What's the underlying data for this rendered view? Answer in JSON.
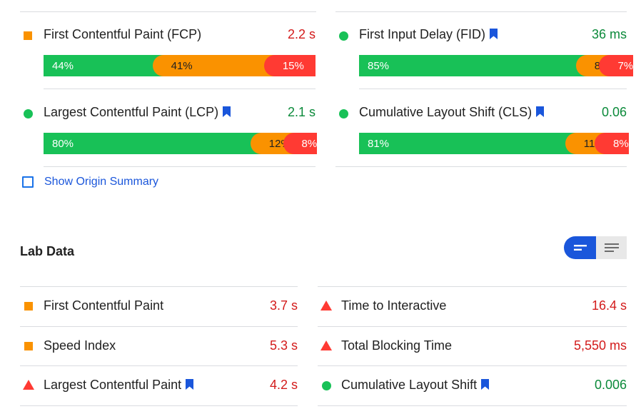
{
  "colors": {
    "good": "#18c157",
    "average": "#fa9200",
    "poor": "#ff3a33",
    "good_text": "#0b8a3a",
    "poor_text": "#d31b1b",
    "accent": "#1a56db",
    "divider": "#dadce0"
  },
  "field_data": {
    "metrics": [
      {
        "name": "First Contentful Paint (FCP)",
        "value": "2.2 s",
        "indicator": "orange-square",
        "value_status": "poor",
        "bookmark": false,
        "distribution": {
          "good": "44%",
          "average": "41%",
          "poor": "15%"
        },
        "fractions": [
          0.44,
          0.41,
          0.15
        ]
      },
      {
        "name": "First Input Delay (FID)",
        "value": "36 ms",
        "indicator": "green-circle",
        "value_status": "good",
        "bookmark": true,
        "distribution": {
          "good": "85%",
          "average": "8%",
          "poor": "7%"
        },
        "fractions": [
          0.85,
          0.08,
          0.07
        ]
      },
      {
        "name": "Largest Contentful Paint (LCP)",
        "value": "2.1 s",
        "indicator": "green-circle",
        "value_status": "good",
        "bookmark": true,
        "distribution": {
          "good": "80%",
          "average": "12%",
          "poor": "8%"
        },
        "fractions": [
          0.8,
          0.12,
          0.08
        ]
      },
      {
        "name": "Cumulative Layout Shift (CLS)",
        "value": "0.06",
        "indicator": "green-circle",
        "value_status": "good",
        "bookmark": true,
        "distribution": {
          "good": "81%",
          "average": "11%",
          "poor": "8%"
        },
        "fractions": [
          0.81,
          0.11,
          0.08
        ]
      }
    ],
    "origin_summary_label": "Show Origin Summary",
    "origin_summary_checked": false
  },
  "lab_data": {
    "title": "Lab Data",
    "view_toggle": {
      "selected": "list-detailed",
      "options": [
        "list-detailed-icon",
        "list-compact-icon"
      ]
    },
    "metrics": [
      {
        "name": "First Contentful Paint",
        "value": "3.7 s",
        "indicator": "orange-square",
        "value_status": "poor",
        "bookmark": false
      },
      {
        "name": "Time to Interactive",
        "value": "16.4 s",
        "indicator": "red-triangle",
        "value_status": "poor",
        "bookmark": false
      },
      {
        "name": "Speed Index",
        "value": "5.3 s",
        "indicator": "orange-square",
        "value_status": "poor",
        "bookmark": false
      },
      {
        "name": "Total Blocking Time",
        "value": "5,550 ms",
        "indicator": "red-triangle",
        "value_status": "poor",
        "bookmark": false
      },
      {
        "name": "Largest Contentful Paint",
        "value": "4.2 s",
        "indicator": "red-triangle",
        "value_status": "poor",
        "bookmark": true
      },
      {
        "name": "Cumulative Layout Shift",
        "value": "0.006",
        "indicator": "green-circle",
        "value_status": "good",
        "bookmark": true
      }
    ]
  }
}
